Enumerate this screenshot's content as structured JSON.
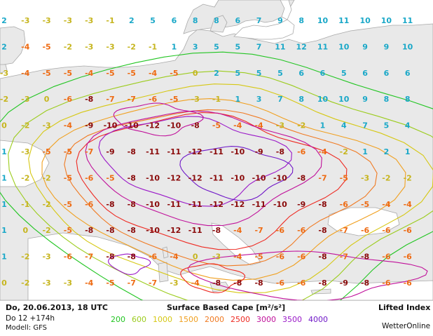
{
  "footer": {
    "date_line": "Do, 20.06.2013, 18 UTC",
    "run_line": "Do 12 +174h",
    "model_line": "Modell: GFS",
    "title": "Surface Based Cape [m²/s²]",
    "layer_label": "Lifted Index",
    "brand": "WetterOnline"
  },
  "legend": {
    "levels": [
      {
        "label": "200",
        "color": "#22c522"
      },
      {
        "label": "600",
        "color": "#9ccc1e"
      },
      {
        "label": "1000",
        "color": "#d6c814"
      },
      {
        "label": "1500",
        "color": "#f0a020"
      },
      {
        "label": "2000",
        "color": "#f07a22"
      },
      {
        "label": "2500",
        "color": "#ee2a22"
      },
      {
        "label": "3000",
        "color": "#c0109a"
      },
      {
        "label": "3500",
        "color": "#9a18c8"
      },
      {
        "label": "4000",
        "color": "#7018c8"
      }
    ]
  },
  "colors": {
    "sea": "#ffffff",
    "land": "#e9e9e9",
    "coast": "#a9a9a9",
    "li_positive": "#1aa8c8",
    "li_near_zero": "#c6b51e",
    "li_negative": "#ee6a12",
    "li_strong": "#8a0a0a"
  },
  "lifted_index": {
    "rows": [
      [
        "2",
        "-3",
        "-3",
        "-3",
        "-3",
        "-1",
        "2",
        "5",
        "6",
        "8",
        "8",
        "6",
        "7",
        "9",
        "8",
        "10",
        "11",
        "10",
        "10",
        "11"
      ],
      [
        "2",
        "-4",
        "-5",
        "-2",
        "-3",
        "-3",
        "-2",
        "-1",
        "1",
        "3",
        "5",
        "5",
        "7",
        "11",
        "12",
        "11",
        "10",
        "9",
        "9",
        "10"
      ],
      [
        "-3",
        "-4",
        "-5",
        "-5",
        "-4",
        "-5",
        "-5",
        "-4",
        "-5",
        "0",
        "2",
        "5",
        "5",
        "5",
        "6",
        "6",
        "5",
        "6",
        "6",
        "6"
      ],
      [
        "-2",
        "-3",
        "0",
        "-6",
        "-8",
        "-7",
        "-7",
        "-6",
        "-5",
        "-3",
        "-1",
        "1",
        "3",
        "7",
        "8",
        "10",
        "10",
        "9",
        "8",
        "8"
      ],
      [
        "0",
        "-2",
        "-3",
        "-4",
        "-9",
        "-10",
        "-10",
        "-12",
        "-10",
        "-8",
        "-5",
        "-4",
        "-4",
        "-3",
        "-2",
        "1",
        "4",
        "7",
        "5",
        "4"
      ],
      [
        "1",
        "-3",
        "-5",
        "-5",
        "-7",
        "-9",
        "-8",
        "-11",
        "-11",
        "-12",
        "-11",
        "-10",
        "-9",
        "-8",
        "-6",
        "-4",
        "-2",
        "1",
        "2",
        "1"
      ],
      [
        "1",
        "-2",
        "-2",
        "-5",
        "-6",
        "-5",
        "-8",
        "-10",
        "-12",
        "-12",
        "-11",
        "-10",
        "-10",
        "-10",
        "-8",
        "-7",
        "-5",
        "-3",
        "-2",
        "-2"
      ],
      [
        "1",
        "-1",
        "-2",
        "-5",
        "-6",
        "-8",
        "-8",
        "-10",
        "-11",
        "-11",
        "-12",
        "-12",
        "-11",
        "-10",
        "-9",
        "-8",
        "-6",
        "-5",
        "-4",
        "-4"
      ],
      [
        "1",
        "0",
        "-2",
        "-5",
        "-8",
        "-8",
        "-8",
        "-10",
        "-12",
        "-11",
        "-8",
        "-4",
        "-7",
        "-6",
        "-6",
        "-8",
        "-7",
        "-6",
        "-6",
        "-6"
      ],
      [
        "1",
        "-2",
        "-3",
        "-6",
        "-7",
        "-8",
        "-8",
        "-6",
        "-4",
        "0",
        "-3",
        "-4",
        "-5",
        "-6",
        "-6",
        "-8",
        "-7",
        "-8",
        "-6",
        "-6"
      ],
      [
        "0",
        "-2",
        "-3",
        "-3",
        "-4",
        "-5",
        "-7",
        "-7",
        "-3",
        "-4",
        "-8",
        "-8",
        "-8",
        "-6",
        "-6",
        "-8",
        "-9",
        "-8",
        "-6",
        "-6"
      ]
    ]
  }
}
